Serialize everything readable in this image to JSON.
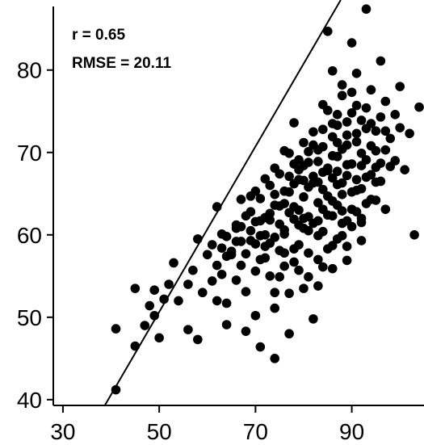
{
  "chart_data": {
    "type": "scatter",
    "title": "",
    "xlabel": "",
    "ylabel": "",
    "xlim": [
      28,
      105
    ],
    "ylim": [
      39.3,
      88.5
    ],
    "x_ticks": [
      30,
      50,
      70,
      90
    ],
    "y_ticks": [
      40,
      50,
      60,
      70,
      80
    ],
    "grid": false,
    "identity_line": {
      "from": [
        38.7,
        39.3
      ],
      "to": [
        87.7,
        88.5
      ]
    },
    "annotations": [
      {
        "name": "r-annotation",
        "text": "r =  0.65"
      },
      {
        "name": "rmse-annotation",
        "text": "RMSE =  20.11"
      }
    ],
    "series": [
      {
        "color": "#000000",
        "points": [
          [
            41,
            41.2
          ],
          [
            41,
            48.6
          ],
          [
            45,
            46.5
          ],
          [
            45,
            53.5
          ],
          [
            47,
            49
          ],
          [
            48,
            51.4
          ],
          [
            49,
            53.3
          ],
          [
            49,
            50.2
          ],
          [
            50,
            47.5
          ],
          [
            51,
            52.2
          ],
          [
            52,
            54
          ],
          [
            53,
            56.6
          ],
          [
            54,
            52
          ],
          [
            56,
            54
          ],
          [
            56,
            48.5
          ],
          [
            57,
            55.7
          ],
          [
            58,
            59.5
          ],
          [
            58,
            47.3
          ],
          [
            59,
            53
          ],
          [
            60,
            57.6
          ],
          [
            61,
            54.4
          ],
          [
            61,
            58.8
          ],
          [
            62,
            52
          ],
          [
            62,
            63.4
          ],
          [
            63,
            55.2
          ],
          [
            63,
            60.1
          ],
          [
            64,
            57.4
          ],
          [
            64,
            49.1
          ],
          [
            65,
            58
          ],
          [
            66,
            54.5
          ],
          [
            66,
            61.2
          ],
          [
            67,
            56.3
          ],
          [
            67,
            59.2
          ],
          [
            67,
            64.3
          ],
          [
            68,
            53.1
          ],
          [
            68,
            57.7
          ],
          [
            69,
            60.5
          ],
          [
            69,
            62.8
          ],
          [
            70,
            55.6
          ],
          [
            70,
            58.9
          ],
          [
            70,
            50.2
          ],
          [
            71,
            61.7
          ],
          [
            71,
            64.4
          ],
          [
            71,
            46.4
          ],
          [
            72,
            57.2
          ],
          [
            72,
            60
          ],
          [
            72,
            66.8
          ],
          [
            73,
            55
          ],
          [
            73,
            62.6
          ],
          [
            73,
            59
          ],
          [
            74,
            64.9
          ],
          [
            74,
            51.1
          ],
          [
            74,
            45
          ],
          [
            75,
            61.3
          ],
          [
            75,
            58.1
          ],
          [
            75,
            67.4
          ],
          [
            76,
            56.2
          ],
          [
            76,
            63.8
          ],
          [
            76,
            60.6
          ],
          [
            77,
            69.9
          ],
          [
            77,
            65.2
          ],
          [
            77,
            52.9
          ],
          [
            78,
            61.9
          ],
          [
            78,
            58.3
          ],
          [
            78,
            73.6
          ],
          [
            79,
            66.7
          ],
          [
            79,
            63
          ],
          [
            79,
            55.7
          ],
          [
            80,
            68.4
          ],
          [
            80,
            60.8
          ],
          [
            80,
            64.6
          ],
          [
            81,
            70.1
          ],
          [
            81,
            57.8
          ],
          [
            81,
            62.2
          ],
          [
            82,
            66.3
          ],
          [
            82,
            72.5
          ],
          [
            82,
            49.8
          ],
          [
            83,
            63.9
          ],
          [
            83,
            68.9
          ],
          [
            83,
            59.9
          ],
          [
            84,
            75.8
          ],
          [
            84,
            65.5
          ],
          [
            84,
            70.7
          ],
          [
            85,
            62.4
          ],
          [
            85,
            67.8
          ],
          [
            85,
            84.7
          ],
          [
            86,
            71.9
          ],
          [
            86,
            64.1
          ],
          [
            86,
            58.7
          ],
          [
            87,
            69.5
          ],
          [
            87,
            73.3
          ],
          [
            87,
            66.1
          ],
          [
            88,
            76.9
          ],
          [
            88,
            62.9
          ],
          [
            88,
            70.4
          ],
          [
            89,
            67.2
          ],
          [
            89,
            72.1
          ],
          [
            89,
            56.9
          ],
          [
            90,
            74.8
          ],
          [
            90,
            68.6
          ],
          [
            90,
            83.3
          ],
          [
            91,
            65.4
          ],
          [
            91,
            71.3
          ],
          [
            91,
            79.6
          ],
          [
            92,
            69.9
          ],
          [
            92,
            73.9
          ],
          [
            92,
            61.5
          ],
          [
            93,
            87.4
          ],
          [
            93,
            67
          ],
          [
            93,
            75.4
          ],
          [
            94,
            70.8
          ],
          [
            94,
            64.3
          ],
          [
            94,
            77.6
          ],
          [
            95,
            72.6
          ],
          [
            95,
            68.2
          ],
          [
            96,
            74.3
          ],
          [
            96,
            66.5
          ],
          [
            97,
            70.3
          ],
          [
            97,
            76.2
          ],
          [
            98,
            71.7
          ],
          [
            99,
            69
          ],
          [
            100,
            73
          ],
          [
            101,
            67.9
          ],
          [
            102,
            72.3
          ],
          [
            103,
            60
          ],
          [
            104,
            75.5
          ],
          [
            100,
            78
          ],
          [
            96,
            81.1
          ],
          [
            92,
            59.3
          ],
          [
            89,
            61.7
          ],
          [
            86,
            79.9
          ],
          [
            83,
            53.8
          ],
          [
            80,
            53.5
          ],
          [
            77,
            48
          ],
          [
            74,
            53
          ],
          [
            71,
            57
          ],
          [
            68,
            48.3
          ],
          [
            66,
            60.8
          ],
          [
            64,
            51.7
          ],
          [
            62,
            56.3
          ],
          [
            76,
            65.3
          ],
          [
            78,
            66.2
          ],
          [
            79,
            67.9
          ],
          [
            80,
            66.6
          ],
          [
            81,
            65.8
          ],
          [
            82,
            67.1
          ],
          [
            83,
            66.4
          ],
          [
            84,
            67.6
          ],
          [
            85,
            68.1
          ],
          [
            86,
            66.9
          ],
          [
            87,
            67.7
          ],
          [
            88,
            66.3
          ],
          [
            89,
            68.5
          ],
          [
            84,
            63.1
          ],
          [
            82,
            61.4
          ],
          [
            80,
            62
          ],
          [
            78,
            63.4
          ],
          [
            76,
            60.1
          ],
          [
            85,
            64.7
          ],
          [
            87,
            63.6
          ],
          [
            88,
            64.9
          ],
          [
            90,
            65.2
          ],
          [
            86,
            69.6
          ],
          [
            83,
            70.3
          ],
          [
            81,
            68.8
          ],
          [
            79,
            69.1
          ],
          [
            91,
            66.7
          ],
          [
            92,
            68.4
          ],
          [
            89,
            70.9
          ],
          [
            87,
            71.2
          ],
          [
            75,
            63.5
          ],
          [
            77,
            62.7
          ],
          [
            73,
            61.8
          ],
          [
            74,
            63.6
          ],
          [
            72,
            62.1
          ],
          [
            71,
            59.9
          ],
          [
            70,
            61.6
          ],
          [
            69,
            59.3
          ],
          [
            79,
            61.2
          ],
          [
            81,
            60.5
          ],
          [
            83,
            61.7
          ],
          [
            84,
            60.4
          ],
          [
            86,
            62.3
          ],
          [
            88,
            61.4
          ],
          [
            90,
            63.1
          ],
          [
            92,
            65.6
          ],
          [
            93,
            69.1
          ],
          [
            94,
            67.3
          ],
          [
            95,
            70.2
          ],
          [
            91,
            72.3
          ],
          [
            89,
            73.7
          ],
          [
            86,
            73.5
          ],
          [
            84,
            72.8
          ],
          [
            82,
            70.9
          ],
          [
            80,
            71.2
          ],
          [
            78,
            68.6
          ],
          [
            77,
            67.1
          ],
          [
            76,
            70.2
          ],
          [
            74,
            68.1
          ],
          [
            73,
            66
          ],
          [
            70,
            65.3
          ],
          [
            69,
            64.7
          ],
          [
            68,
            62.3
          ],
          [
            67,
            61
          ],
          [
            66,
            59.2
          ],
          [
            65,
            57.6
          ],
          [
            64,
            59.8
          ],
          [
            63,
            58.4
          ],
          [
            85,
            75.1
          ],
          [
            87,
            74.6
          ],
          [
            88,
            78.2
          ],
          [
            90,
            77.3
          ],
          [
            91,
            75.7
          ],
          [
            93,
            72.9
          ],
          [
            94,
            73.5
          ],
          [
            95,
            66.4
          ],
          [
            96,
            68.7
          ],
          [
            97,
            72.6
          ],
          [
            98,
            68.3
          ],
          [
            99,
            74.6
          ],
          [
            83,
            57
          ],
          [
            85,
            58.3
          ],
          [
            87,
            59.5
          ],
          [
            89,
            58.6
          ],
          [
            91,
            62.8
          ],
          [
            93,
            63.8
          ],
          [
            95,
            64.2
          ],
          [
            97,
            63.1
          ],
          [
            78,
            56.7
          ],
          [
            76,
            57.8
          ],
          [
            74,
            59.7
          ],
          [
            72,
            58.6
          ],
          [
            75,
            54.9
          ],
          [
            79,
            58.8
          ],
          [
            81,
            54.9
          ],
          [
            84,
            56.1
          ],
          [
            86,
            55.9
          ],
          [
            88,
            59.9
          ],
          [
            90,
            61
          ],
          [
            92,
            62
          ]
        ]
      }
    ]
  }
}
